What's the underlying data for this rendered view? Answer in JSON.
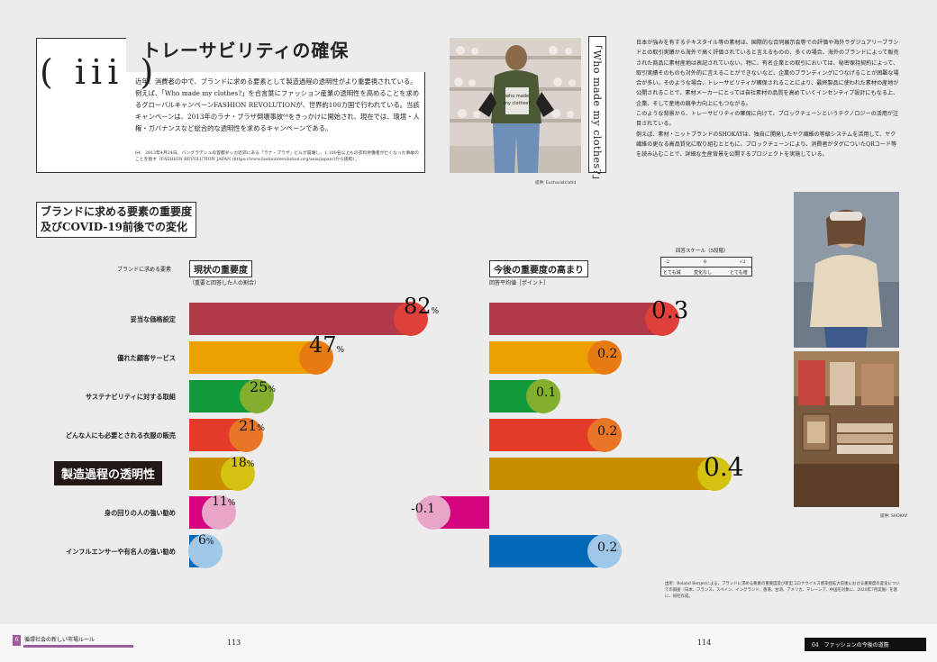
{
  "section": {
    "numeral": "( iii )",
    "title": "トレーサビリティの確保",
    "intro": "近年、消費者の中で、ブランドに求める要素として製造過程の透明性がより重要視されている。例えば、「Who made my clothes?」を合言葉にファッション産業の透明性を高めることを求めるグローバルキャンペーンFASHION REVOLUTIONが、世界約100カ国で行われている。当該キャンペーンは、2013年のラナ・プラザ倒壊事故⁶⁴をきっかけに開始され、現在では、環境・人権・ガバナンスなど総合的な透明性を求めるキャンペーンである。",
    "footnote": "64　2013年4月24日、バングラデシュの首都ダッカ近郊にある「ラナ・プラザ」ビルが崩壊し、1,100名以上もの衣料労働者が亡くなった事故のことを指す（FASHION REVOLUTION JAPAN (https://www.fashionrevolution.org/asia/japan/)から抜粋）。",
    "vertical_title": "「Who made my clothes?」",
    "right_text": "日本が強みを有するテキスタイル等の素材は、国際的な合同展示会等での評価や海外ラグジュアリーブランドとの取引実績から海外で高く評価されていると言えるものの、多くの場合、海外のブランドによって販売された商品に素材産地は表記されていない。特に、有名企業との取引においては、秘密保持契約によって、取引実績そのものも対外的に言えることができないなど、企業のブランディングにつなげることが困難な場合が多い。そのような場合、トレーサビリティが確保されることにより、最終製品に使われた素材の産地が公開されることで、素材メーカーにとっては自社素材の品質を高めていくインセンティブ設計にもなる上、企業、そして産地の競争力向上にもつながる。\nこのような背景から、トレーサビリティの確保に向けて、ブロックチェーンというテクノロジーの活用が注目されている。\n例えば、素材・ニットブランドのSHOKAYは、独自に開発したヤク繊維の等級システムを活用して、ヤク繊維の更なる高品質化に取り組むとともに、ブロックチェーンにより、消費者がタグについたQRコード等を読み込むことで、詳細な生産背景を公開するプロジェクトを実施している。"
  },
  "photos": {
    "photo1_credit": "提供: Eucharistclotid",
    "photo2_credit": "提供: SHOKAY",
    "shirt_text": "Who made my clothes?"
  },
  "chart_title_l1": "ブランドに求める要素の重要度",
  "chart_title_l2": "及びCOVID-19前後での変化",
  "attr_label": "ブランドに求める要素",
  "left_head": "現状の重要度",
  "left_sub": "（重要と回答した人の割合）",
  "right_head": "今後の重要度の高まり",
  "right_sub": "回答平均値［ポイント］",
  "scale": {
    "title": "回答スケール（5段階）",
    "top": [
      "-2",
      "0",
      "+2"
    ],
    "bottom": [
      "とても減",
      "変化なし",
      "とても増"
    ]
  },
  "source": "出所：Roland Bergerによる、ブランドに求める要素の重要度及び新型コロナウイルス感染症拡大前後における重要度の変化についての調査（日本、フランス、スペイン、イングランド、香港、台湾、アメリカ、マレーシア、中国を対象に、2020年7月実施）を基に、同社作成。",
  "footer": {
    "left_badge": "6",
    "left_label": "循環社会の新しい市場ルール",
    "page_left": "113",
    "page_right": "114",
    "right_label": "04　ファッションの今後の道筋"
  },
  "colors": {
    "r1": [
      "#b03a48",
      "#e0403a"
    ],
    "r2": [
      "#eda100",
      "#e77a10"
    ],
    "r3": [
      "#0f9a3c",
      "#83ae2e"
    ],
    "r4": [
      "#e43a28",
      "#e97526"
    ],
    "r5": [
      "#c88e00",
      "#d5c110"
    ],
    "r6": [
      "#d6037f",
      "#e8a5c8"
    ],
    "r7": [
      "#0068b6",
      "#9fc8e8"
    ]
  },
  "chart_data": {
    "type": "bar",
    "categories": [
      "妥当な価格設定",
      "優れた顧客サービス",
      "サステナビリティに対する取組",
      "どんな人にも必要とされる衣服の販売",
      "製造過程の透明性",
      "身の回りの人の強い勧め",
      "インフルエンサーや有名人の強い勧め"
    ],
    "current_pct": [
      82,
      47,
      25,
      21,
      18,
      11,
      6
    ],
    "future_points": [
      0.3,
      0.2,
      0.1,
      0.2,
      0.4,
      -0.1,
      0.2
    ],
    "current_pct_labels": [
      "82",
      "47",
      "25",
      "21",
      "18",
      "11",
      "6"
    ],
    "future_labels": [
      "0.3",
      "0.2",
      "0.1",
      "0.2",
      "0.4",
      "-0.1",
      "0.2"
    ],
    "pct_unit": "%"
  }
}
